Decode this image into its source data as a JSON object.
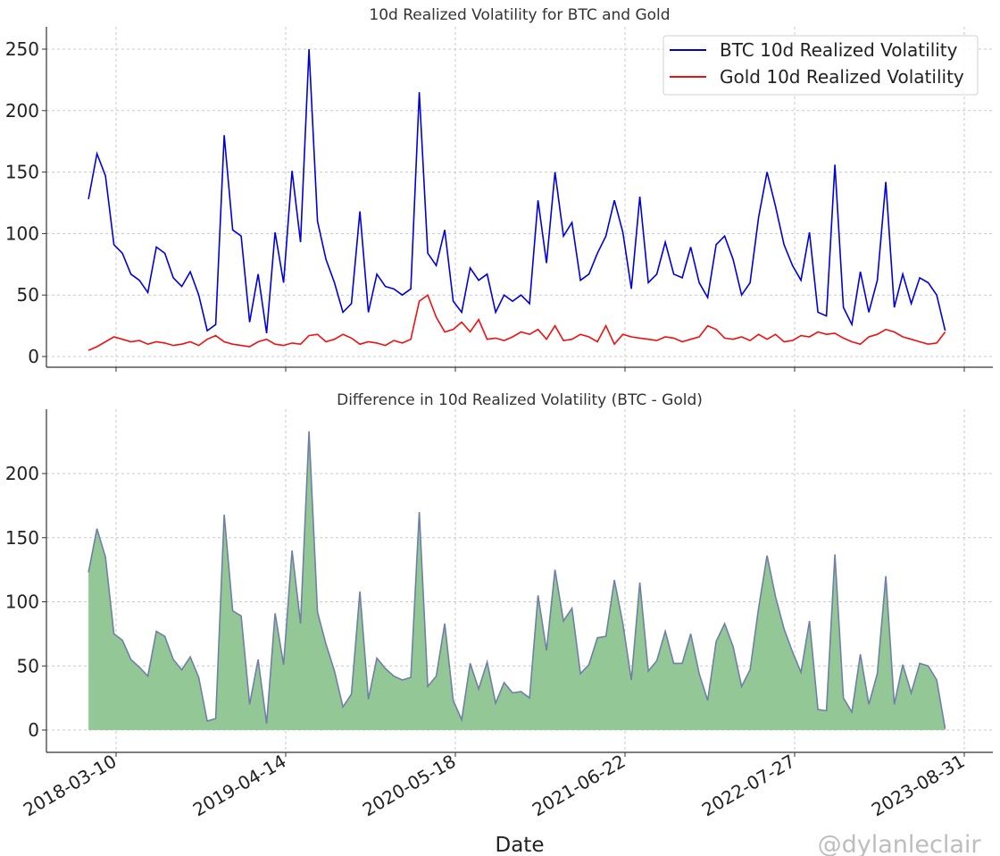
{
  "chart_data": [
    {
      "type": "line",
      "title": "10d Realized Volatility for BTC and Gold",
      "xlabel": "",
      "ylabel": "",
      "ylim": [
        -8,
        268
      ],
      "yticks": [
        0,
        50,
        100,
        150,
        200,
        250
      ],
      "xticks": [
        "2018-03-10",
        "2019-04-14",
        "2020-05-18",
        "2021-06-22",
        "2022-07-27",
        "2023-08-31"
      ],
      "grid": true,
      "legend_placement": "top-right",
      "x": [
        "2018-01-04",
        "2018-01-24",
        "2018-02-13",
        "2018-03-05",
        "2018-03-25",
        "2018-04-14",
        "2018-05-04",
        "2018-05-24",
        "2018-06-13",
        "2018-07-03",
        "2018-07-23",
        "2018-08-12",
        "2018-09-01",
        "2018-09-21",
        "2018-10-11",
        "2018-10-31",
        "2018-11-20",
        "2018-12-10",
        "2018-12-30",
        "2019-01-19",
        "2019-02-08",
        "2019-02-28",
        "2019-03-20",
        "2019-04-09",
        "2019-04-29",
        "2019-05-19",
        "2019-06-08",
        "2019-06-28",
        "2019-07-18",
        "2019-08-07",
        "2019-08-27",
        "2019-09-16",
        "2019-10-06",
        "2019-10-26",
        "2019-11-15",
        "2019-12-05",
        "2019-12-25",
        "2020-01-14",
        "2020-02-03",
        "2020-02-23",
        "2020-03-14",
        "2020-04-03",
        "2020-04-23",
        "2020-05-13",
        "2020-06-02",
        "2020-06-22",
        "2020-07-12",
        "2020-08-01",
        "2020-08-21",
        "2020-09-10",
        "2020-09-30",
        "2020-10-20",
        "2020-11-09",
        "2020-11-29",
        "2020-12-19",
        "2021-01-08",
        "2021-01-28",
        "2021-02-17",
        "2021-03-09",
        "2021-03-29",
        "2021-04-18",
        "2021-05-08",
        "2021-05-28",
        "2021-06-17",
        "2021-07-07",
        "2021-07-27",
        "2021-08-16",
        "2021-09-05",
        "2021-09-25",
        "2021-10-15",
        "2021-11-04",
        "2021-11-24",
        "2021-12-14",
        "2022-01-03",
        "2022-01-23",
        "2022-02-12",
        "2022-03-04",
        "2022-03-24",
        "2022-04-13",
        "2022-05-03",
        "2022-05-23",
        "2022-06-12",
        "2022-07-02",
        "2022-07-22",
        "2022-08-11",
        "2022-08-31",
        "2022-09-20",
        "2022-10-10",
        "2022-10-30",
        "2022-11-19",
        "2022-12-09",
        "2022-12-29",
        "2023-01-18",
        "2023-02-07",
        "2023-02-27",
        "2023-03-19",
        "2023-04-08",
        "2023-04-28",
        "2023-05-18",
        "2023-06-07",
        "2023-06-27",
        "2023-07-17"
      ],
      "series": [
        {
          "name": "BTC 10d Realized Volatility",
          "color": "#0000dd",
          "values": [
            128,
            165,
            147,
            91,
            84,
            67,
            62,
            52,
            89,
            84,
            64,
            57,
            69,
            50,
            21,
            26,
            180,
            103,
            98,
            28,
            67,
            19,
            101,
            60,
            151,
            93,
            250,
            110,
            79,
            60,
            36,
            43,
            118,
            36,
            67,
            57,
            55,
            50,
            55,
            215,
            84,
            74,
            103,
            45,
            36,
            72,
            62,
            67,
            36,
            50,
            45,
            50,
            43,
            127,
            76,
            150,
            98,
            109,
            62,
            67,
            84,
            98,
            127,
            101,
            55,
            130,
            60,
            67,
            93,
            67,
            64,
            89,
            60,
            48,
            91,
            98,
            79,
            50,
            60,
            113,
            150,
            122,
            91,
            74,
            62,
            101,
            36,
            33,
            156,
            40,
            26,
            69,
            36,
            62,
            142,
            40,
            67,
            43,
            64,
            60,
            50,
            21
          ]
        },
        {
          "name": "Gold 10d Realized Volatility",
          "color": "#ee1111",
          "values": [
            5,
            8,
            12,
            16,
            14,
            12,
            13,
            10,
            12,
            11,
            9,
            10,
            12,
            9,
            14,
            17,
            12,
            10,
            9,
            8,
            12,
            14,
            10,
            9,
            11,
            10,
            17,
            18,
            12,
            14,
            18,
            15,
            10,
            12,
            11,
            9,
            13,
            11,
            14,
            45,
            50,
            32,
            20,
            22,
            28,
            20,
            30,
            14,
            15,
            13,
            16,
            20,
            18,
            22,
            14,
            25,
            13,
            14,
            18,
            16,
            12,
            25,
            10,
            18,
            16,
            15,
            14,
            13,
            16,
            15,
            12,
            14,
            16,
            25,
            22,
            15,
            14,
            16,
            13,
            18,
            14,
            18,
            12,
            13,
            17,
            16,
            20,
            18,
            19,
            15,
            12,
            10,
            16,
            18,
            22,
            20,
            16,
            14,
            12,
            10,
            11,
            20
          ]
        }
      ]
    },
    {
      "type": "area",
      "title": "Difference in 10d Realized Volatility (BTC - Gold)",
      "xlabel": "Date",
      "ylabel": "",
      "ylim": [
        -17,
        250
      ],
      "yticks": [
        0,
        50,
        100,
        150,
        200
      ],
      "xticks": [
        "2018-03-10",
        "2019-04-14",
        "2020-05-18",
        "2021-06-22",
        "2022-07-27",
        "2023-08-31"
      ],
      "grid": true,
      "fill_color": "#93c795",
      "line_color": "#6f7fa8",
      "values": [
        123,
        157,
        135,
        75,
        70,
        55,
        49,
        42,
        77,
        73,
        55,
        47,
        57,
        41,
        7,
        9,
        168,
        93,
        89,
        20,
        55,
        5,
        91,
        51,
        140,
        83,
        233,
        92,
        67,
        46,
        18,
        28,
        108,
        24,
        56,
        48,
        42,
        39,
        41,
        170,
        34,
        42,
        83,
        23,
        8,
        52,
        32,
        53,
        21,
        37,
        29,
        30,
        25,
        105,
        62,
        125,
        85,
        95,
        44,
        51,
        72,
        73,
        117,
        83,
        39,
        115,
        46,
        54,
        77,
        52,
        52,
        75,
        44,
        23,
        69,
        83,
        65,
        34,
        47,
        95,
        136,
        104,
        79,
        61,
        45,
        85,
        16,
        15,
        137,
        25,
        14,
        59,
        20,
        44,
        120,
        20,
        51,
        29,
        52,
        50,
        39,
        1
      ]
    }
  ],
  "watermark": "@dylanleclair_"
}
